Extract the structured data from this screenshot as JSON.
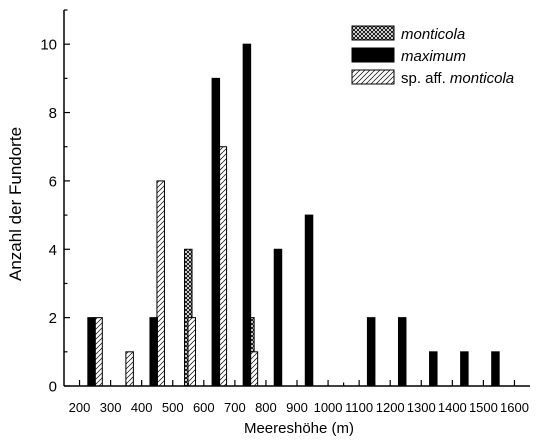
{
  "chart_data": {
    "type": "bar",
    "categories": [
      "200",
      "300",
      "400",
      "500",
      "600",
      "700",
      "800",
      "900",
      "1000",
      "1100",
      "1200",
      "1300",
      "1400",
      "1500",
      "1600"
    ],
    "xlabel": "Meereshöhe (m)",
    "ylabel": "Anzahl der Fundorte",
    "ylim": [
      0,
      11
    ],
    "yticks": [
      0,
      2,
      4,
      6,
      8,
      10
    ],
    "xticks": [
      200,
      300,
      400,
      500,
      600,
      700,
      800,
      900,
      1000,
      1100,
      1200,
      1300,
      1400,
      1500,
      1600
    ],
    "grid": false,
    "legend_position": "top-right",
    "series": [
      {
        "name": "monticola",
        "pattern": "crosshatch",
        "italic": true,
        "points": [
          {
            "x": 550,
            "y": 4
          },
          {
            "x": 650,
            "y": 4
          },
          {
            "x": 750,
            "y": 2
          }
        ]
      },
      {
        "name": "maximum",
        "pattern": "solid",
        "italic": true,
        "points": [
          {
            "x": 250,
            "y": 2
          },
          {
            "x": 450,
            "y": 2
          },
          {
            "x": 650,
            "y": 9
          },
          {
            "x": 750,
            "y": 10
          },
          {
            "x": 850,
            "y": 4
          },
          {
            "x": 950,
            "y": 5
          },
          {
            "x": 1150,
            "y": 2
          },
          {
            "x": 1250,
            "y": 2
          },
          {
            "x": 1350,
            "y": 1
          },
          {
            "x": 1450,
            "y": 1
          },
          {
            "x": 1550,
            "y": 1
          }
        ]
      },
      {
        "name": "sp. aff. monticola",
        "name_prefix": "sp. aff. ",
        "name_italic": "monticola",
        "pattern": "diagonal",
        "points": [
          {
            "x": 250,
            "y": 2
          },
          {
            "x": 350,
            "y": 1
          },
          {
            "x": 450,
            "y": 6
          },
          {
            "x": 550,
            "y": 2
          },
          {
            "x": 650,
            "y": 7
          },
          {
            "x": 750,
            "y": 1
          }
        ]
      }
    ],
    "colors": {
      "bar_fill_solid": "#000000",
      "bar_stroke": "#000000",
      "background": "#ffffff"
    }
  }
}
